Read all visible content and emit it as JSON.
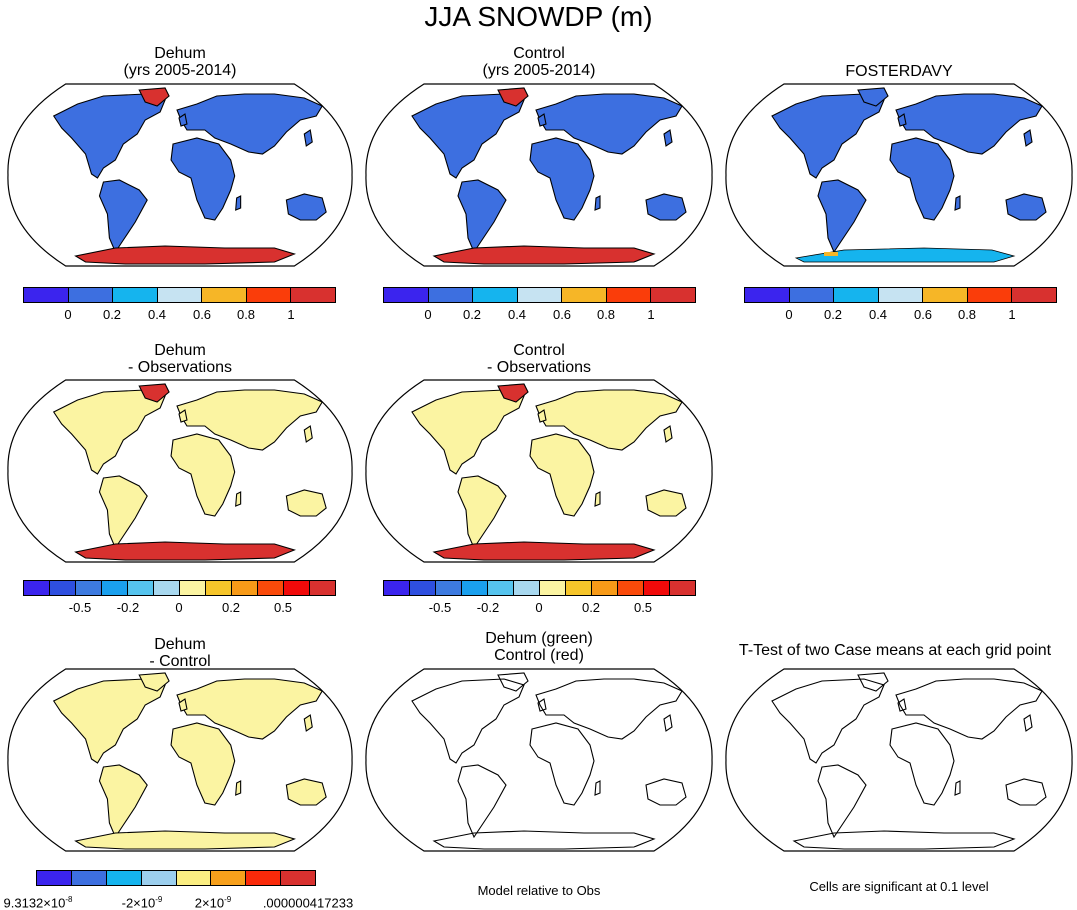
{
  "figure_title": "JJA SNOWDP (m)",
  "panels": [
    {
      "id": "p1",
      "title_lines": [
        "Dehum",
        "(yrs 2005-2014)"
      ],
      "fill": "blue",
      "ant": "red",
      "grn": "red"
    },
    {
      "id": "p2",
      "title_lines": [
        "Control",
        "(yrs 2005-2014)"
      ],
      "fill": "blue",
      "ant": "red",
      "grn": "red"
    },
    {
      "id": "p3",
      "title_lines": [
        "FOSTERDAVY"
      ],
      "fill": "blue",
      "ant": "obs",
      "grn": "blue"
    },
    {
      "id": "p4",
      "title_lines": [
        "Dehum",
        "- Observations"
      ],
      "fill": "yellow",
      "ant": "red",
      "grn": "red"
    },
    {
      "id": "p5",
      "title_lines": [
        "Control",
        "- Observations"
      ],
      "fill": "yellow",
      "ant": "red",
      "grn": "red"
    },
    {
      "id": "p6",
      "title_lines": [
        "Dehum",
        "- Control"
      ],
      "fill": "yellow",
      "ant": "yellow",
      "grn": "yellow"
    },
    {
      "id": "p7",
      "title_lines": [
        "Dehum (green)",
        "Control (red)"
      ],
      "fill": "none",
      "ant": "none",
      "grn": "none"
    },
    {
      "id": "p8",
      "title_lines": [
        "T-Test of two Case means at each grid point"
      ],
      "fill": "none",
      "ant": "none",
      "grn": "none"
    }
  ],
  "colorbars": {
    "absolute": {
      "colors": [
        "#3b24ee",
        "#3d6fe0",
        "#15b4ee",
        "#c6e3f2",
        "#f6b627",
        "#fa3d0a",
        "#d8312f"
      ],
      "labels": [
        "0",
        "0.2",
        "0.4",
        "0.6",
        "0.8",
        "1"
      ]
    },
    "difference": {
      "colors": [
        "#3b24ee",
        "#2e4fe0",
        "#3d7ae0",
        "#1aa0ee",
        "#56c4ee",
        "#a8d8ef",
        "#fbf4a2",
        "#f6c52a",
        "#f79a18",
        "#fa4a0a",
        "#f10a0a",
        "#d8312f"
      ],
      "labels": [
        "-0.5",
        "-0.2",
        "0",
        "0.2",
        "0.5"
      ]
    },
    "dehum_control": {
      "colors": [
        "#3b24ee",
        "#3d6fe0",
        "#15b4ee",
        "#9ccfee",
        "#fbee82",
        "#f7a01c",
        "#fa2a0a",
        "#d8312f"
      ],
      "labels": [
        {
          "mant": "9.3132×10",
          "exp": "-8"
        },
        {
          "mant": "-2×10",
          "exp": "-9"
        },
        {
          "mant": "2×10",
          "exp": "-9"
        },
        {
          "mant": ".000000417233",
          "exp": ""
        }
      ]
    }
  },
  "notes": {
    "model_relative": "Model relative to Obs",
    "significance": "Cells are significant at 0.1 level"
  },
  "map_colors": {
    "blue": "#3d6fe0",
    "red": "#d8312f",
    "yellow": "#fbf4a2",
    "light_blue": "#a8d8ef",
    "cyan": "#15b4ee",
    "orange": "#f6b627"
  }
}
